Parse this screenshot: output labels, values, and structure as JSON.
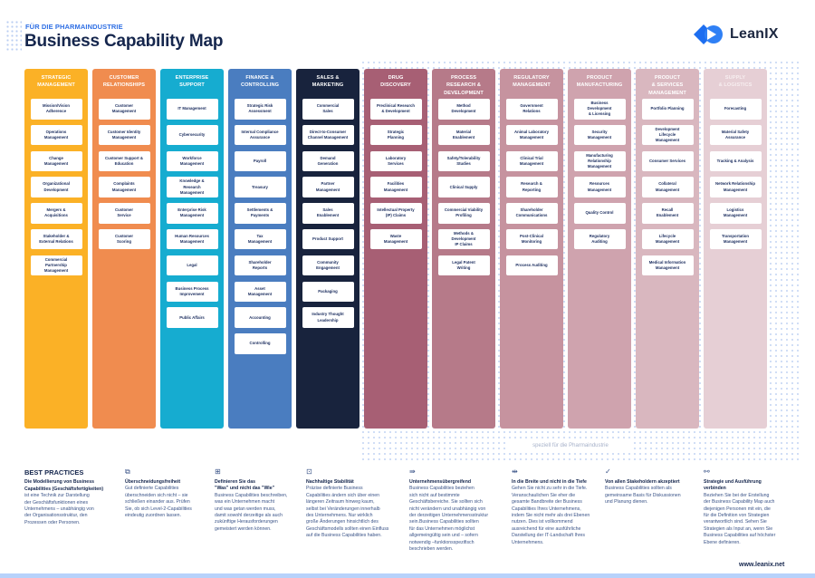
{
  "header": {
    "subtitle": "FÜR DIE PHARMAINDUSTRIE",
    "title": "Business Capability Map",
    "logo_text": "LeanIX",
    "logo_color": "#1d6ef0"
  },
  "pharma_label": "speziell für die Pharmaindustrie",
  "columns": [
    {
      "title": "STRATEGIC\nMANAGEMENT",
      "color": "#fbb126",
      "items": [
        "Mission/Vision\nAdherence",
        "Operations\nManagement",
        "Change\nManagement",
        "Organizational\nDevelopment",
        "Mergers &\nAcquisitions",
        "Stakeholder &\nExternal Relations",
        "Commercial\nPartnership\nManagement"
      ]
    },
    {
      "title": "CUSTOMER\nRELATIONSHIPS",
      "color": "#f08c4f",
      "items": [
        "Customer\nManagement",
        "Customer Identity\nManagement",
        "Customer Support &\nEducation",
        "Complaints\nManagement",
        "Customer\nService",
        "Customer\nScoring"
      ]
    },
    {
      "title": "ENTERPRISE\nSUPPORT",
      "color": "#16acd0",
      "items": [
        "IT Management",
        "Cybersecurity",
        "Workforce\nManagement",
        "Knowledge &\nResearch\nManagement",
        "Enterprise Risk\nManagement",
        "Human Resources\nManagement",
        "Legal",
        "Business Process\nImprovement",
        "Public Affairs"
      ]
    },
    {
      "title": "FINANCE &\nCONTROLLING",
      "color": "#4a7dc0",
      "items": [
        "Strategic Risk\nAssessment",
        "Internal Compliance\nAssurance",
        "Payroll",
        "Treasury",
        "Settlements &\nPayments",
        "Tax\nManagement",
        "Shareholder\nReports",
        "Asset\nManagement",
        "Accounting",
        "Controlling"
      ]
    },
    {
      "title": "SALES &\nMARKETING",
      "color": "#18233d",
      "items": [
        "Commercial\nSales",
        "Direct-to-Consumer\nChannel Management",
        "Demand\nGeneration",
        "Partner\nManagement",
        "Sales\nEnablement",
        "Product Support",
        "Community\nEngagement",
        "Packaging",
        "Industry Thought\nLeadership"
      ]
    },
    {
      "title": "DRUG\nDISCOVERY",
      "color": "#a75f74",
      "items": [
        "Preclinical Research\n& Development",
        "Strategic\nPlanning",
        "Laboratory\nServices",
        "Facilities\nManagement",
        "Intellectual Property\n(IP) Claims",
        "Waste\nManagement"
      ]
    },
    {
      "title": "PROCESS\nRESEARCH &\nDEVELOPMENT",
      "color": "#b67a89",
      "items": [
        "Method\nDevelopment",
        "Material\nEnablement",
        "Safety/Tolerability\nStudies",
        "Clinical Supply",
        "Commercial Viability\nProfiling",
        "Methods &\nDevelopment\nIP Claims",
        "Legal Patent\nWriting"
      ]
    },
    {
      "title": "REGULATORY\nMANAGEMENT",
      "color": "#c6939f",
      "items": [
        "Government\nRelations",
        "Animal Laboratory\nManagement",
        "Clinical Trial\nManagement",
        "Research &\nReporting",
        "Shareholder\nCommunications",
        "Post-Clinical\nMonitoring",
        "Process Auditing"
      ]
    },
    {
      "title": "PRODUCT\nMANUFACTURING",
      "color": "#cfa3ae",
      "items": [
        "Business\nDevelopment\n& Licensing",
        "Security\nManagement",
        "Manufacturing\nRelationship\nManagement",
        "Resources\nManagement",
        "Quality Control",
        "Regulatory\nAuditing"
      ]
    },
    {
      "title": "PRODUCT\n& SERVICES\nMANAGEMENT",
      "color": "#d9b7bf",
      "items": [
        "Portfolio Planning",
        "Development\nLifecycle\nManagement",
        "Consumer Services",
        "Collateral\nManagement",
        "Recall\nEnablement",
        "Lifecycle\nManagement",
        "Medical Information\nManagement"
      ]
    },
    {
      "title": "SUPPLY\n& LOGISTICS",
      "color": "#e6cfd5",
      "items": [
        "Forecasting",
        "Material Safety\nAssurance",
        "Tracking & Analysis",
        "Network Relationship\nManagement",
        "Logistics\nManagement",
        "Transportation\nManagement"
      ]
    }
  ],
  "best_practices": {
    "heading": "BEST PRACTICES",
    "intro_title": "Die Modellierung von Business\nCapabilities (Geschäftsfertigkeiten)",
    "intro_body": "ist eine Technik zur Darstellung\nder Geschäftsfunktionen eines\nUnternehmens – unabhängig von\nder Organisationsstruktur, den\nProzessen oder Personen.",
    "items": [
      {
        "icon": "overlap-icon",
        "glyph": "⧉",
        "title": "Überschneidungsfreiheit",
        "body": "Gut definierte Capabilities\nüberschneiden sich nicht – sie\nschließen einander aus. Prüfen\nSie, ob sich Level-2-Capabilities\neindeutig zuordnen lassen."
      },
      {
        "icon": "grid-icon",
        "glyph": "⊞",
        "title": "Definieren Sie das\n\"Was\" und nicht das \"Wie\"",
        "body": "Business Capabilities beschreiben,\nwas ein Unternehmen macht\nund was getan werden muss,\ndamit sowohl derzeitige als auch\nzukünftige Herausforderungen\ngemeistert werden können."
      },
      {
        "icon": "calendar-icon",
        "glyph": "⊡",
        "title": "Nachhaltige Stabilität",
        "body": "Präzise definierte Business\nCapabilities ändern sich über einen\nlängeren Zeitraum hinweg kaum,\nselbst bei Veränderungen innerhalb\ndes Unternehmens. Nur wirklich\ngroße Änderungen hinsichtlich des\nGeschäftsmodells sollten einen Einfluss\nauf die Business Capabilities haben."
      },
      {
        "icon": "cross-company-icon",
        "glyph": "⇛",
        "title": "Unternehmensübergreifend",
        "body": "Business Capabilities beziehen\nsich nicht auf bestimmte\nGeschäftsbereiche. Sie sollten sich\nnicht verändern und unabhängig von\nder derzeitigen Unternehmensstruktur\nsein.Business Capabilities sollten\nfür das Unternehmen möglichst\nallgemeingültig sein und – sofern\nnotwendig –funktionsspezifisch\nbeschrieben werden."
      },
      {
        "icon": "width-icon",
        "glyph": "⇹",
        "title": "In die Breite und nicht in die Tiefe",
        "body": "Gehen Sie nicht zu sehr in die Tiefe.\nVeranschaulichen Sie eher die\ngesamte Bandbreite der Business\nCapabilities Ihres Unternehmens,\nindem Sie nicht mehr als drei Ebenen\nnutzen. Dies ist vollkommend\nausreichend für eine ausführliche\nDarstellung der IT-Landschaft Ihres\nUnternehmens."
      },
      {
        "icon": "check-circle-icon",
        "glyph": "✓",
        "title": "Von allen Stakeholdern akzeptiert",
        "body": "Business Capabilities sollten als\ngemeinsame Basis für Diskussionen\nund Planung dienen."
      },
      {
        "icon": "hierarchy-icon",
        "glyph": "⚯",
        "title": "Strategie und Ausführung\nverbinden",
        "body": "Beziehen Sie bei der Erstellung\nder Business Capability Map auch\ndiejenigen Personen mit ein, die\nfür die Definition von Strategien\nverantwortlich sind. Sehen Sie\nStrategien als Input an, wenn Sie\nBusiness Capabilities auf höchster\nEbene definieren."
      }
    ]
  },
  "footer": {
    "url": "www.leanix.net"
  }
}
